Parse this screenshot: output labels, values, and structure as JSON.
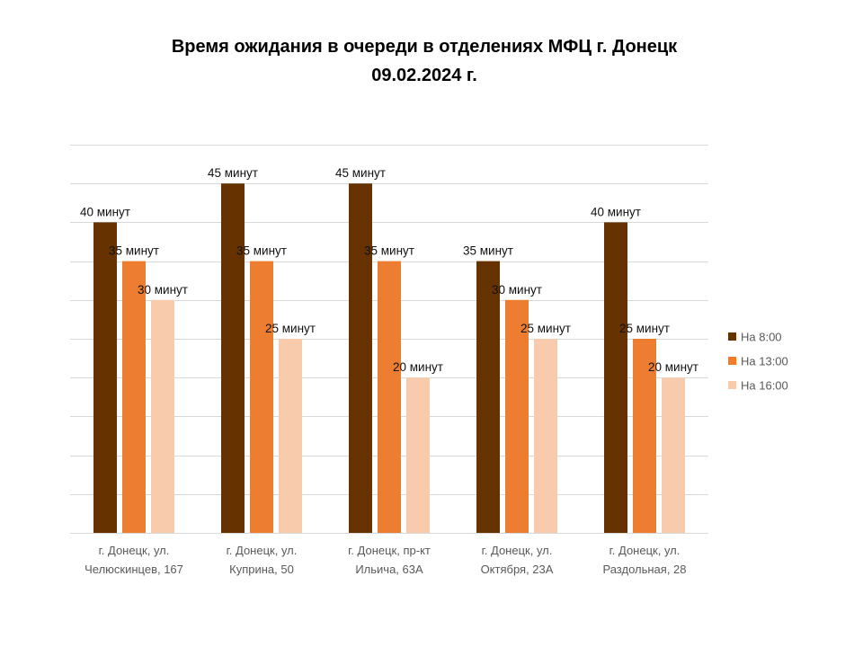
{
  "chart_data": {
    "type": "bar",
    "title": "Время ожидания в очереди в отделениях МФЦ г. Донецк",
    "subtitle": "09.02.2024 г.",
    "xlabel": "",
    "ylabel": "",
    "ylim": [
      0,
      50
    ],
    "grid": true,
    "legend_position": "right",
    "value_unit": "минут",
    "categories": [
      [
        "г. Донецк, ул.",
        "Челюскинцев, 167"
      ],
      [
        "г. Донецк, ул.",
        "Куприна, 50"
      ],
      [
        "г. Донецк, пр-кт",
        "Ильича, 63А"
      ],
      [
        "г. Донецк, ул.",
        "Октября, 23А"
      ],
      [
        "г. Донецк, ул.",
        "Раздольная, 28"
      ]
    ],
    "series": [
      {
        "name": "На 8:00",
        "color": "#663300",
        "values": [
          40,
          45,
          45,
          35,
          40
        ]
      },
      {
        "name": "На 13:00",
        "color": "#ED7D31",
        "values": [
          35,
          35,
          35,
          30,
          25
        ]
      },
      {
        "name": "На 16:00",
        "color": "#F8CBAD",
        "values": [
          30,
          25,
          20,
          25,
          20
        ]
      }
    ]
  }
}
